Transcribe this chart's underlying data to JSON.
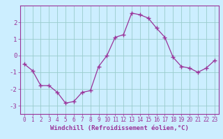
{
  "x": [
    0,
    1,
    2,
    3,
    4,
    5,
    6,
    7,
    8,
    9,
    10,
    11,
    12,
    13,
    14,
    15,
    16,
    17,
    18,
    19,
    20,
    21,
    22,
    23
  ],
  "y": [
    -0.5,
    -0.9,
    -1.8,
    -1.8,
    -2.2,
    -2.85,
    -2.75,
    -2.2,
    -2.1,
    -0.65,
    0.0,
    1.1,
    1.25,
    2.55,
    2.45,
    2.25,
    1.65,
    1.1,
    -0.1,
    -0.65,
    -0.75,
    -1.0,
    -0.75,
    -0.3
  ],
  "line_color": "#993399",
  "marker": "+",
  "marker_size": 4,
  "bg_color": "#cceeff",
  "grid_color": "#99cccc",
  "xlabel": "Windchill (Refroidissement éolien,°C)",
  "xlim": [
    -0.5,
    23.5
  ],
  "ylim": [
    -3.5,
    3.0
  ],
  "yticks": [
    -3,
    -2,
    -1,
    0,
    1,
    2
  ],
  "xticks": [
    0,
    1,
    2,
    3,
    4,
    5,
    6,
    7,
    8,
    9,
    10,
    11,
    12,
    13,
    14,
    15,
    16,
    17,
    18,
    19,
    20,
    21,
    22,
    23
  ],
  "tick_color": "#993399",
  "tick_fontsize": 5.5,
  "xlabel_fontsize": 6.5
}
